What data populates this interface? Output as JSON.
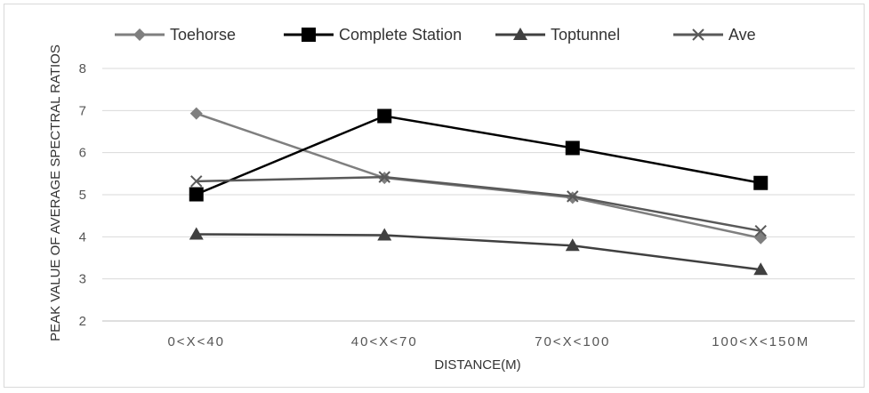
{
  "chart_data": {
    "type": "line",
    "title": "",
    "xlabel": "DISTANCE(M)",
    "ylabel": "PEAK VALUE OF AVERAGE SPECTRAL RATIOS",
    "categories": [
      "0<X<40",
      "40<X<70",
      "70<X<100",
      "100<X<150M"
    ],
    "ylim": [
      2,
      8
    ],
    "yticks": [
      2,
      3,
      4,
      5,
      6,
      7,
      8
    ],
    "grid": true,
    "legend_position": "top",
    "series": [
      {
        "name": "Toehorse",
        "values": [
          6.93,
          5.4,
          4.93,
          3.97
        ],
        "color": "#7f7f7f",
        "marker": "diamond"
      },
      {
        "name": "Complete Station",
        "values": [
          5.01,
          6.87,
          6.11,
          5.28
        ],
        "color": "#000000",
        "marker": "square"
      },
      {
        "name": "Toptunnel",
        "values": [
          4.06,
          4.04,
          3.79,
          3.22
        ],
        "color": "#404040",
        "marker": "triangle"
      },
      {
        "name": "Ave",
        "values": [
          5.32,
          5.42,
          4.96,
          4.14
        ],
        "color": "#595959",
        "marker": "x"
      }
    ]
  }
}
